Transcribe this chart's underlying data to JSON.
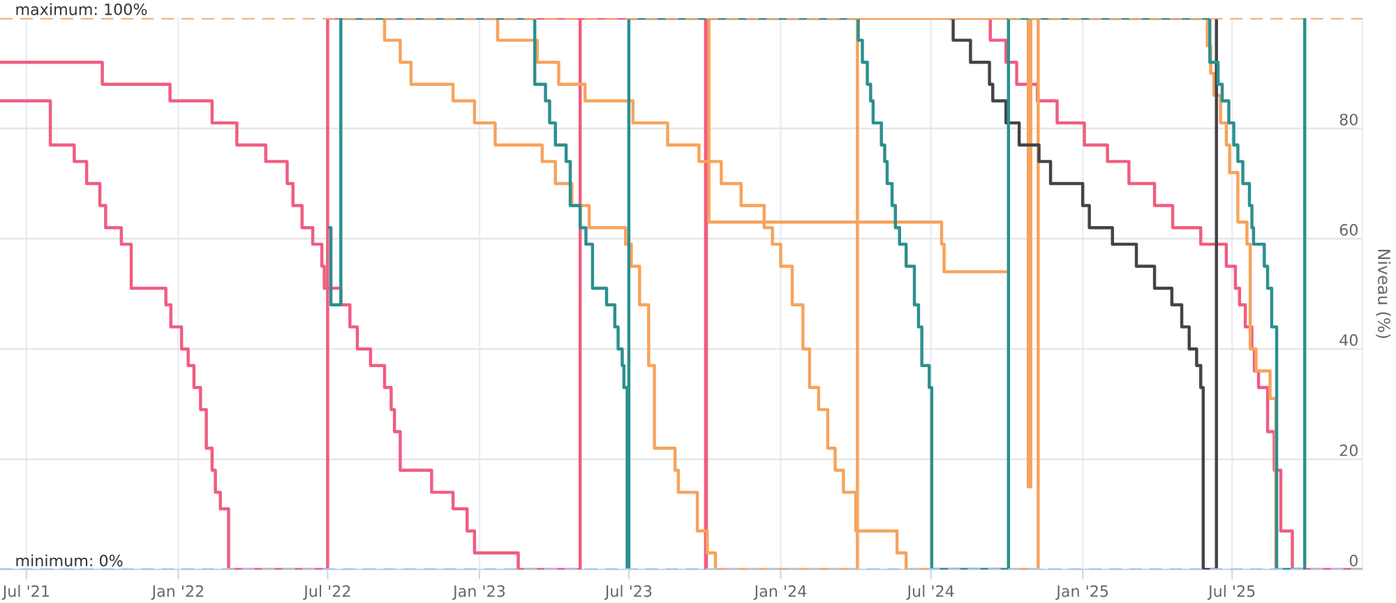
{
  "chart_data": {
    "type": "step",
    "ylabel": "Niveau (%)",
    "xlim": [
      "2021-05-30",
      "2025-12-06"
    ],
    "ylim": [
      0,
      100
    ],
    "xticks": [
      {
        "value": "2021-07-01",
        "label": "Jul '21"
      },
      {
        "value": "2022-01-01",
        "label": "Jan '22"
      },
      {
        "value": "2022-07-01",
        "label": "Jul '22"
      },
      {
        "value": "2023-01-01",
        "label": "Jan '23"
      },
      {
        "value": "2023-07-01",
        "label": "Jul '23"
      },
      {
        "value": "2024-01-01",
        "label": "Jan '24"
      },
      {
        "value": "2024-07-01",
        "label": "Jul '24"
      },
      {
        "value": "2025-01-01",
        "label": "Jan '25"
      },
      {
        "value": "2025-07-01",
        "label": "Jul '25"
      }
    ],
    "yticks": [
      0,
      20,
      40,
      60,
      80
    ],
    "grid": true,
    "ref_lines": [
      {
        "axis": "y",
        "value": 100,
        "label": "maximum: 100%",
        "color": "#f7a35c",
        "line_style": "dashed"
      },
      {
        "axis": "y",
        "value": 0,
        "label": "minimum: 0%",
        "color": "#a8c8e8",
        "line_style": "dashed"
      }
    ],
    "series": [
      {
        "color": "#f15c80",
        "x": [
          "2021-05-30",
          "2021-07-30",
          "2021-08-28",
          "2021-09-12",
          "2021-09-28",
          "2021-10-05",
          "2021-10-24",
          "2021-11-05",
          "2021-12-17",
          "2021-12-23",
          "2022-01-05",
          "2022-01-13",
          "2022-01-20",
          "2022-01-28",
          "2022-02-04",
          "2022-02-11",
          "2022-02-15",
          "2022-02-21",
          "2022-03-03",
          "2022-07-01",
          "2023-10-02",
          "2023-10-03",
          "2024-09-11",
          "2024-09-30",
          "2024-10-13",
          "2024-11-07",
          "2024-12-01",
          "2025-01-03",
          "2025-01-31",
          "2025-02-26",
          "2025-03-29",
          "2025-04-20",
          "2025-05-24",
          "2025-06-24",
          "2025-07-05",
          "2025-07-10",
          "2025-07-17",
          "2025-07-25",
          "2025-07-28",
          "2025-08-02",
          "2025-08-13",
          "2025-08-21",
          "2025-08-29",
          "2025-09-12",
          "2025-12-06"
        ],
        "values": [
          85,
          77,
          74,
          70,
          66,
          62,
          59,
          51,
          48,
          44,
          40,
          37,
          33,
          29,
          22,
          18,
          14,
          11,
          0,
          100,
          0,
          100,
          96,
          92,
          88,
          85,
          81,
          77,
          74,
          70,
          66,
          62,
          59,
          55,
          51,
          48,
          44,
          40,
          36,
          33,
          25,
          18,
          7,
          0,
          0
        ]
      },
      {
        "color": "#f15c80",
        "x": [
          "2021-05-30",
          "2021-10-01",
          "2021-12-22",
          "2022-02-11",
          "2022-03-13",
          "2022-04-17",
          "2022-05-13",
          "2022-05-20",
          "2022-05-31",
          "2022-06-13",
          "2022-06-24",
          "2022-06-27",
          "2022-07-17",
          "2022-07-28",
          "2022-08-06",
          "2022-08-22",
          "2022-09-08",
          "2022-09-16",
          "2022-09-20",
          "2022-09-27",
          "2022-11-04",
          "2022-11-30",
          "2022-12-17",
          "2022-12-26",
          "2023-02-17",
          "2023-05-03"
        ],
        "values": [
          92,
          88,
          85,
          81,
          77,
          74,
          70,
          66,
          62,
          59,
          55,
          51,
          48,
          44,
          40,
          37,
          33,
          29,
          25,
          18,
          14,
          11,
          7,
          3,
          0,
          100
        ]
      },
      {
        "color": "#f7a35c",
        "x": [
          "2022-09-03",
          "2022-09-08",
          "2022-09-27",
          "2022-10-10",
          "2022-11-30",
          "2022-12-26",
          "2023-01-20",
          "2023-03-18",
          "2023-04-03",
          "2023-04-23",
          "2023-05-14",
          "2023-06-27",
          "2023-07-04",
          "2023-07-14",
          "2023-07-25",
          "2023-08-01",
          "2023-08-26",
          "2023-08-30",
          "2023-09-22",
          "2023-10-04",
          "2023-10-14",
          "2024-04-03",
          "2024-10-27",
          "2024-10-30",
          "2025-06-01",
          "2025-06-05",
          "2025-06-09",
          "2025-06-17",
          "2025-06-24",
          "2025-06-28",
          "2025-07-08",
          "2025-07-19",
          "2025-07-23",
          "2025-07-30",
          "2025-08-16",
          "2025-08-23"
        ],
        "values": [
          100,
          96,
          92,
          88,
          85,
          81,
          77,
          74,
          70,
          66,
          62,
          59,
          55,
          48,
          37,
          22,
          18,
          14,
          7,
          3,
          0,
          100,
          15,
          100,
          95,
          90,
          86,
          81,
          77,
          72,
          63,
          59,
          40,
          36,
          31,
          0
        ]
      },
      {
        "color": "#f7a35c",
        "x": [
          "2023-01-18",
          "2023-01-23",
          "2023-03-12",
          "2023-04-07",
          "2023-05-09",
          "2023-07-06",
          "2023-08-17",
          "2023-09-24",
          "2023-10-21",
          "2023-11-14",
          "2023-12-12",
          "2023-12-22",
          "2024-01-01",
          "2024-01-15",
          "2024-01-28",
          "2024-02-05",
          "2024-02-16",
          "2024-02-27",
          "2024-03-07",
          "2024-03-17",
          "2024-04-01",
          "2024-05-21",
          "2024-06-01",
          "2024-11-08"
        ],
        "values": [
          100,
          96,
          92,
          88,
          85,
          81,
          77,
          74,
          70,
          66,
          62,
          59,
          55,
          48,
          40,
          33,
          29,
          22,
          18,
          14,
          7,
          3,
          0,
          100
        ]
      },
      {
        "color": "#f7a35c",
        "x": [
          "2023-10-03",
          "2023-10-06",
          "2024-07-14",
          "2024-07-17",
          "2024-10-02"
        ],
        "values": [
          100,
          63,
          59,
          54,
          54
        ]
      },
      {
        "color": "#434348",
        "x": [
          "2024-07-24",
          "2024-07-28",
          "2024-08-18",
          "2024-09-10",
          "2024-09-14",
          "2024-09-30",
          "2024-10-16",
          "2024-11-09",
          "2024-11-23",
          "2025-01-01",
          "2025-01-09",
          "2025-02-06",
          "2025-03-07",
          "2025-03-29",
          "2025-04-19",
          "2025-05-01",
          "2025-05-10",
          "2025-05-19",
          "2025-05-24",
          "2025-05-27",
          "2025-06-12"
        ],
        "values": [
          100,
          96,
          92,
          88,
          85,
          81,
          77,
          74,
          70,
          66,
          62,
          59,
          55,
          51,
          48,
          44,
          40,
          37,
          33,
          0,
          100
        ]
      },
      {
        "color": "#2b908f",
        "x": [
          "2022-07-03",
          "2022-07-05",
          "2022-07-17",
          "2023-03-09",
          "2023-03-22",
          "2023-03-27",
          "2023-04-03",
          "2023-04-16",
          "2023-04-21",
          "2023-05-03",
          "2023-05-10",
          "2023-05-18",
          "2023-06-04",
          "2023-06-14",
          "2023-06-18",
          "2023-06-23",
          "2023-06-25",
          "2023-06-29",
          "2023-07-01",
          "2024-04-04",
          "2024-04-09",
          "2024-04-15",
          "2024-04-19",
          "2024-04-22",
          "2024-05-02",
          "2024-05-06",
          "2024-05-09",
          "2024-05-15",
          "2024-05-19",
          "2024-05-24",
          "2024-06-01",
          "2024-06-11",
          "2024-06-16",
          "2024-06-20",
          "2024-06-29",
          "2024-07-02",
          "2024-10-03",
          "2025-06-04",
          "2025-06-14",
          "2025-06-19",
          "2025-06-27",
          "2025-07-03",
          "2025-07-08",
          "2025-07-14",
          "2025-07-22",
          "2025-07-25",
          "2025-07-27",
          "2025-08-09",
          "2025-08-13",
          "2025-08-18",
          "2025-08-24",
          "2025-09-27"
        ],
        "values": [
          62,
          48,
          100,
          88,
          85,
          81,
          77,
          74,
          66,
          62,
          59,
          51,
          48,
          44,
          40,
          37,
          33,
          0,
          100,
          96,
          92,
          88,
          85,
          81,
          77,
          74,
          70,
          66,
          62,
          59,
          55,
          48,
          44,
          37,
          33,
          0,
          100,
          92,
          88,
          85,
          81,
          77,
          74,
          70,
          66,
          62,
          59,
          55,
          51,
          44,
          0,
          100
        ]
      }
    ]
  }
}
